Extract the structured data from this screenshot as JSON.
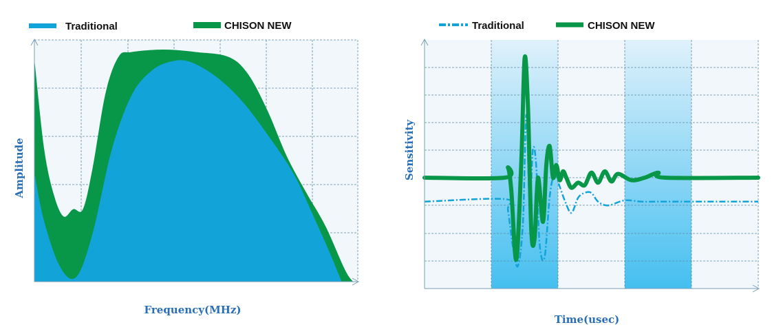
{
  "colors": {
    "traditional": "#12a3d8",
    "chison_new": "#089748",
    "plot_bg": "#f1f7fb",
    "grid": "#5c8ba7",
    "axis_label": "#2a6fb5",
    "band_light": "#dff1fb",
    "band_dark": "#45bff0"
  },
  "chart_data": [
    {
      "type": "area",
      "title": "",
      "xlabel": "Frequency(MHz)",
      "ylabel": "Amplitude",
      "xlim": [
        0,
        1
      ],
      "ylim": [
        0,
        1
      ],
      "grid": true,
      "legend": {
        "placement": "top",
        "entries": [
          "Traditional",
          "CHISON NEW"
        ]
      },
      "series": [
        {
          "name": "Traditional",
          "x": [
            0,
            0.03,
            0.08,
            0.13,
            0.18,
            0.24,
            0.3,
            0.36,
            0.42,
            0.48,
            0.56,
            0.64,
            0.72,
            0.8,
            0.86,
            0.91,
            0.95
          ],
          "y": [
            0.45,
            0.25,
            0.06,
            0.02,
            0.2,
            0.55,
            0.77,
            0.87,
            0.91,
            0.91,
            0.85,
            0.75,
            0.61,
            0.45,
            0.28,
            0.13,
            0.0
          ]
        },
        {
          "name": "CHISON NEW",
          "x": [
            0,
            0.03,
            0.06,
            0.09,
            0.12,
            0.15,
            0.18,
            0.22,
            0.26,
            0.3,
            0.4,
            0.5,
            0.6,
            0.66,
            0.72,
            0.78,
            0.84,
            0.9,
            0.96,
            0.985
          ],
          "y": [
            0.92,
            0.55,
            0.36,
            0.27,
            0.3,
            0.3,
            0.47,
            0.78,
            0.93,
            0.95,
            0.96,
            0.95,
            0.93,
            0.86,
            0.71,
            0.52,
            0.37,
            0.23,
            0.05,
            0.0
          ]
        }
      ]
    },
    {
      "type": "line",
      "title": "",
      "xlabel": "Time(usec)",
      "ylabel": "Sensitivity",
      "xlim": [
        0,
        1
      ],
      "ylim": [
        -1,
        1
      ],
      "grid": true,
      "legend": {
        "placement": "top",
        "entries": [
          "Traditional",
          "CHISON NEW"
        ]
      },
      "series": [
        {
          "name": "Traditional",
          "style": "dash-dot",
          "x": [
            0,
            0.24,
            0.25,
            0.265,
            0.28,
            0.295,
            0.305,
            0.315,
            0.325,
            0.335,
            0.345,
            0.36,
            0.375,
            0.39,
            0.405,
            0.42,
            0.44,
            0.46,
            0.48,
            0.5,
            0.52,
            0.55,
            0.6,
            0.65,
            0.7,
            1
          ],
          "y": [
            -0.19,
            -0.17,
            -0.26,
            -0.55,
            -0.7,
            -0.35,
            0.5,
            -0.2,
            0.23,
            0.08,
            -0.53,
            -0.63,
            -0.15,
            0.03,
            -0.07,
            -0.18,
            -0.28,
            -0.16,
            -0.12,
            -0.12,
            -0.19,
            -0.22,
            -0.18,
            -0.19,
            -0.19,
            -0.19
          ]
        },
        {
          "name": "CHISON NEW",
          "style": "solid",
          "x": [
            0,
            0.24,
            0.25,
            0.26,
            0.275,
            0.29,
            0.3,
            0.31,
            0.32,
            0.33,
            0.34,
            0.355,
            0.365,
            0.375,
            0.385,
            0.395,
            0.405,
            0.415,
            0.425,
            0.44,
            0.46,
            0.48,
            0.5,
            0.52,
            0.54,
            0.56,
            0.58,
            0.62,
            0.66,
            0.7,
            0.72,
            1
          ],
          "y": [
            0.0,
            0.0,
            0.08,
            -0.1,
            -0.65,
            0.12,
            0.95,
            0.55,
            -0.42,
            -0.48,
            0.0,
            -0.35,
            0.1,
            0.25,
            0.0,
            0.1,
            -0.02,
            0.05,
            0.0,
            -0.08,
            -0.04,
            -0.06,
            0.04,
            -0.04,
            0.05,
            -0.03,
            0.03,
            -0.02,
            0.0,
            0.04,
            0.0,
            0.0
          ]
        }
      ]
    }
  ]
}
